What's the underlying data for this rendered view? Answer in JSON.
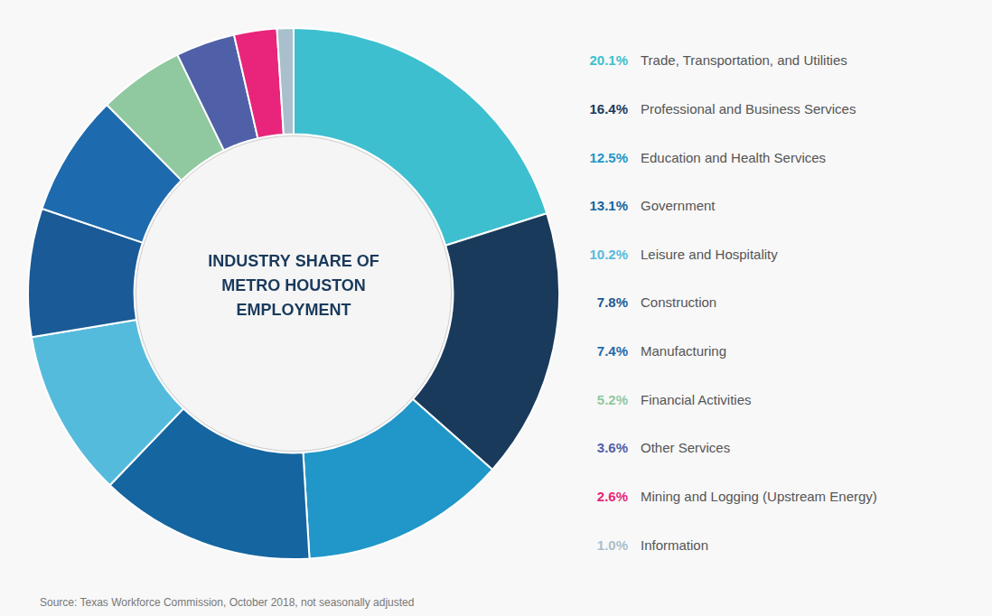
{
  "chart_data": {
    "type": "doughnut",
    "title": "INDUSTRY SHARE OF\nMETRO HOUSTON\nEMPLOYMENT",
    "annotations": [
      "Source: Texas Workforce Commission, October 2018, not seasonally adjusted"
    ],
    "categories": [
      "Trade, Transportation, and Utilities",
      "Professional and Business Services",
      "Education and Health Services",
      "Government",
      "Leisure and Hospitality",
      "Construction",
      "Manufacturing",
      "Financial Activities",
      "Other Services",
      "Mining and Logging (Upstream Energy)",
      "Information"
    ],
    "values": [
      20.1,
      16.4,
      12.5,
      13.1,
      10.2,
      7.8,
      7.4,
      5.2,
      3.6,
      2.6,
      1.0
    ],
    "value_labels": [
      "20.1%",
      "16.4%",
      "12.5%",
      "13.1%",
      "10.2%",
      "7.8%",
      "7.4%",
      "5.2%",
      "3.6%",
      "2.6%",
      "1.0%"
    ],
    "colors": [
      "#3DBFCF",
      "#1a3a5c",
      "#2196C8",
      "#1565A0",
      "#55BBDD",
      "#1A5A96",
      "#1E6AAE",
      "#90C8A0",
      "#5060A8",
      "#E8257A",
      "#AABFCC"
    ],
    "legend": "right"
  }
}
